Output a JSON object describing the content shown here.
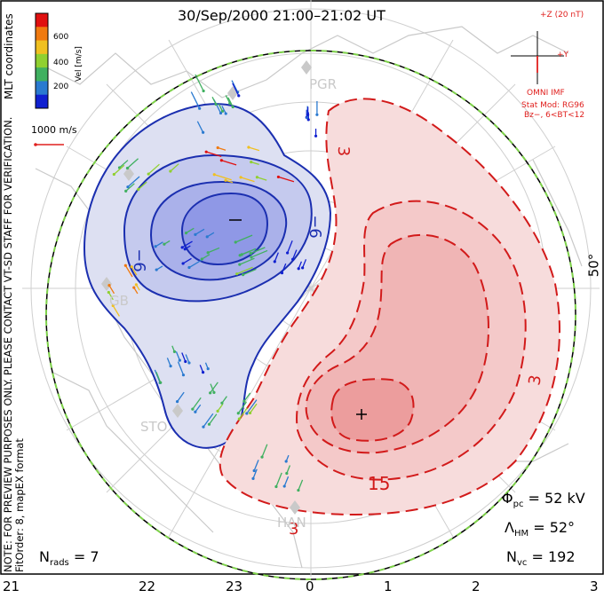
{
  "title": "30/Sep/2000 21:00–21:02 UT",
  "colorbar": {
    "label": "Vel [m/s]",
    "ticks": [
      "600",
      "400",
      "200"
    ],
    "colors": [
      "#e01010",
      "#f07a10",
      "#f0c020",
      "#90d030",
      "#40b060",
      "#2a7ad0",
      "#1020d0"
    ]
  },
  "side_notes": {
    "mlt_coordinates": "MLT coordinates",
    "preview": "NOTE: FOR PREVIEW PURPOSES ONLY. PLEASE CONTACT VT-SD STAFF FOR VERIFICATION.",
    "fitorder": "FitOrder: 8, mapEX format"
  },
  "scale_label": "1000 m/s",
  "imf": {
    "z_label": "+Z (20 nT)",
    "y_label": "+Y",
    "source": "OMNI IMF",
    "model": "Stat Mod: RG96",
    "condition": "Bz−, 6<BT<12"
  },
  "potential_labels": {
    "neg_cell": "−6",
    "neg_min": "−",
    "neg_outer": "−6",
    "pos_3a": "3",
    "pos_3b": "3",
    "pos_3c": "3",
    "pos_15": "15",
    "pos_max": "+"
  },
  "latitude_label": "50°",
  "stations": [
    "PGR",
    "GB",
    "STO",
    "HAN"
  ],
  "stats": {
    "phi_pc": "Φpc = 52 kV",
    "phi_pc_sym": "Φ",
    "phi_pc_sub": "pc",
    "phi_pc_val": "= 52 kV",
    "lambda_hm_sym": "Λ",
    "lambda_hm_sub": "HM",
    "lambda_hm_val": "= 52°",
    "n_vc_sym": "N",
    "n_vc_sub": "vc",
    "n_vc_val": "= 192",
    "n_rads_sym": "N",
    "n_rads_sub": "rads",
    "n_rads_val": "= 7"
  },
  "mlt_axis": [
    "21",
    "22",
    "23",
    "0",
    "1",
    "2",
    "3"
  ],
  "colors": {
    "negative_contour": "#1b2fb0",
    "positive_contour": "#d21a1a",
    "negative_fill": "#dcdff3",
    "positive_fill": "#f8dede",
    "hmb": "#7ed24a",
    "grid": "#c9c9c9"
  }
}
